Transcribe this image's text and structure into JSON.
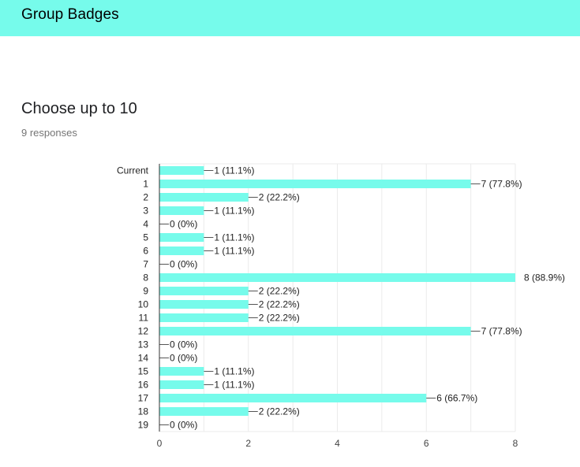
{
  "header": {
    "title": "Group Badges"
  },
  "question": {
    "title": "Choose up to 10",
    "responses": "9 responses"
  },
  "colors": {
    "header_bg": "#76fbeb",
    "bar": "#76fbeb",
    "grid": "#ebebeb",
    "axis": "#333333"
  },
  "chart_data": {
    "type": "bar",
    "orientation": "horizontal",
    "categories": [
      "Current",
      "1",
      "2",
      "3",
      "4",
      "5",
      "6",
      "7",
      "8",
      "9",
      "10",
      "11",
      "12",
      "13",
      "14",
      "15",
      "16",
      "17",
      "18",
      "19"
    ],
    "values": [
      1,
      7,
      2,
      1,
      0,
      1,
      1,
      0,
      8,
      2,
      2,
      2,
      7,
      0,
      0,
      1,
      1,
      6,
      2,
      0
    ],
    "data_labels": [
      "1 (11.1%)",
      "7 (77.8%)",
      "2 (22.2%)",
      "1 (11.1%)",
      "0 (0%)",
      "1 (11.1%)",
      "1 (11.1%)",
      "0 (0%)",
      "8 (88.9%)",
      "2 (22.2%)",
      "2 (22.2%)",
      "2 (22.2%)",
      "7 (77.8%)",
      "0 (0%)",
      "0 (0%)",
      "1 (11.1%)",
      "1 (11.1%)",
      "6 (66.7%)",
      "2 (22.2%)",
      "0 (0%)"
    ],
    "xlim": [
      0,
      8
    ],
    "x_ticks": [
      0,
      2,
      4,
      6,
      8
    ],
    "x_tick_labels": [
      "0",
      "2",
      "4",
      "6",
      "8"
    ],
    "grid": true
  }
}
